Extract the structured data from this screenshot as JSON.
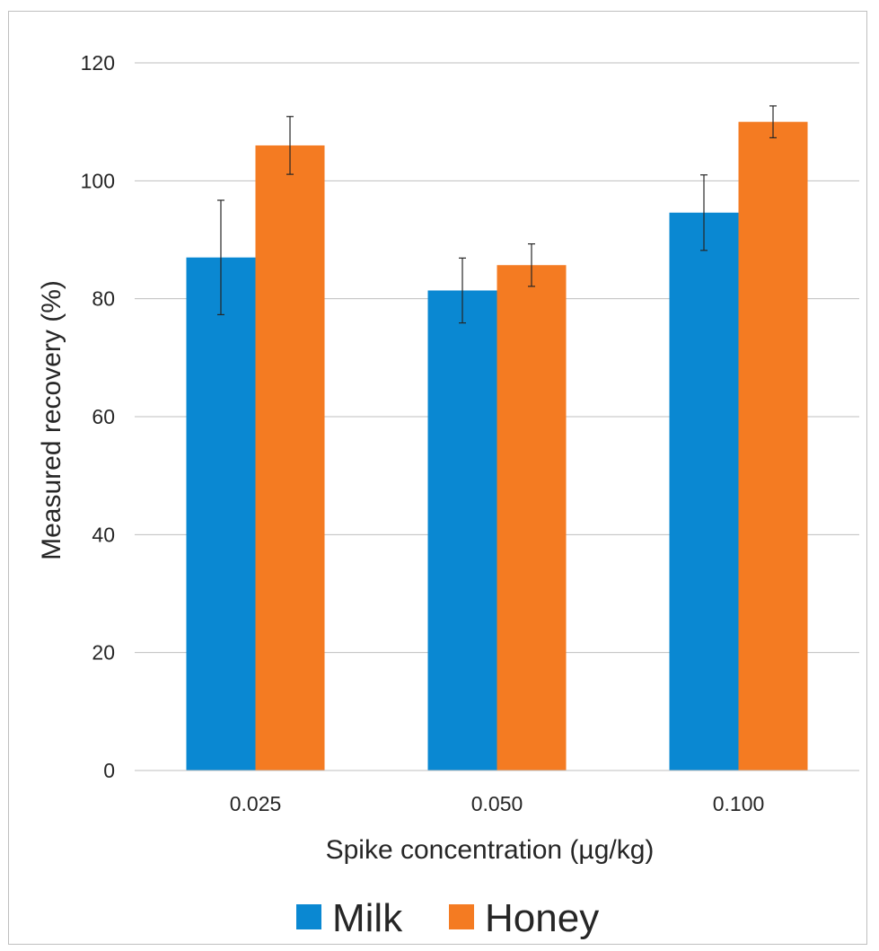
{
  "chart_data": {
    "type": "bar",
    "title": "",
    "xlabel": "Spike concentration (µg/kg)",
    "ylabel": "Measured recovery (%)",
    "categories": [
      "0.025",
      "0.050",
      "0.100"
    ],
    "ylim": [
      0,
      120
    ],
    "yticks": [
      0,
      20,
      40,
      60,
      80,
      100,
      120
    ],
    "grid": true,
    "legend_position": "bottom",
    "series": [
      {
        "name": "Milk",
        "color": "#0a88d2",
        "values": [
          87,
          81.4,
          94.6
        ],
        "errors": [
          9.7,
          5.5,
          6.4
        ]
      },
      {
        "name": "Honey",
        "color": "#f47b22",
        "values": [
          106,
          85.7,
          110
        ],
        "errors": [
          4.9,
          3.6,
          2.7
        ]
      }
    ]
  }
}
